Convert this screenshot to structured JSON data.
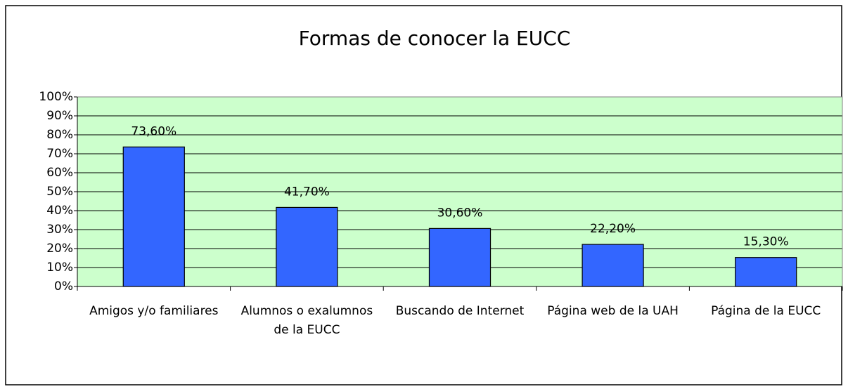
{
  "chart_data": {
    "type": "bar",
    "title": "Formas de conocer la EUCC",
    "categories": [
      "Amigos y/o familiares",
      "Alumnos o exalumnos de la EUCC",
      "Buscando de Internet",
      "Página web de la UAH",
      "Página de la EUCC"
    ],
    "values": [
      73.6,
      41.7,
      30.6,
      22.2,
      15.3
    ],
    "value_labels": [
      "73,60%",
      "41,70%",
      "30,60%",
      "22,20%",
      "15,30%"
    ],
    "color": "#3366ff",
    "plot_background": "#ccffcc",
    "ylim": [
      0,
      100
    ],
    "yticks": [
      {
        "value": 0,
        "label": "0%"
      },
      {
        "value": 10,
        "label": "10%"
      },
      {
        "value": 20,
        "label": "20%"
      },
      {
        "value": 30,
        "label": "30%"
      },
      {
        "value": 40,
        "label": "40%"
      },
      {
        "value": 50,
        "label": "50%"
      },
      {
        "value": 60,
        "label": "60%"
      },
      {
        "value": 70,
        "label": "70%"
      },
      {
        "value": 80,
        "label": "80%"
      },
      {
        "value": 90,
        "label": "90%"
      },
      {
        "value": 100,
        "label": "100%"
      }
    ],
    "grid": true
  }
}
